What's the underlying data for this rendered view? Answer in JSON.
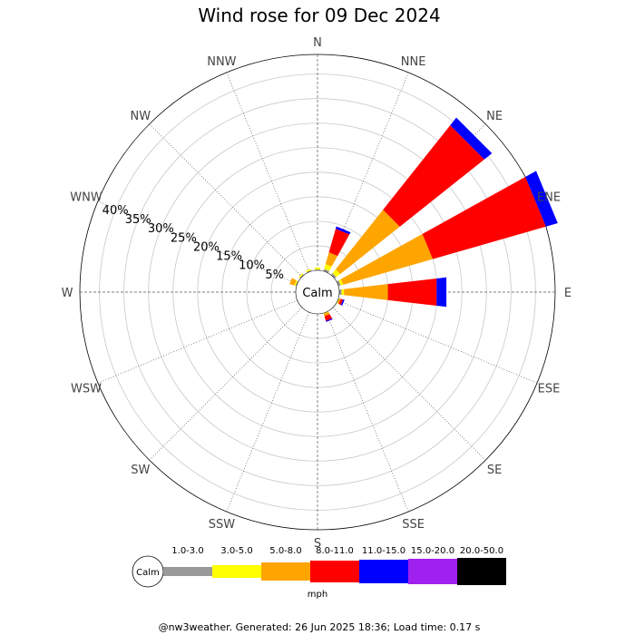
{
  "title": "Wind rose for 09 Dec 2024",
  "footer": "@nw3weather. Generated: 26 Jun 2025 18:36; Load time: 0.17 s",
  "calm_label": "Calm",
  "chart_data": {
    "type": "wind-rose",
    "title": "Wind rose for 09 Dec 2024",
    "directions": [
      "N",
      "NNE",
      "NE",
      "ENE",
      "E",
      "ESE",
      "SE",
      "SSE",
      "S",
      "SSW",
      "SW",
      "WSW",
      "W",
      "WNW",
      "NW",
      "NNW"
    ],
    "radial_ticks": [
      "5%",
      "10%",
      "15%",
      "20%",
      "25%",
      "30%",
      "35%",
      "40%"
    ],
    "radial_tick_values": [
      5,
      10,
      15,
      20,
      25,
      30,
      35,
      40
    ],
    "rmax": 44,
    "legend_unit": "mph",
    "speed_bins": [
      {
        "label": "Calm",
        "color": "#ffffff"
      },
      {
        "label": "1.0-3.0",
        "color": "#999999"
      },
      {
        "label": "3.0-5.0",
        "color": "#ffff00"
      },
      {
        "label": "5.0-8.0",
        "color": "#ffa500"
      },
      {
        "label": "8.0-11.0",
        "color": "#ff0000"
      },
      {
        "label": "11.0-15.0",
        "color": "#0000ff"
      },
      {
        "label": "15.0-20.0",
        "color": "#a020f0"
      },
      {
        "label": "20.0-50.0",
        "color": "#000000"
      }
    ],
    "series": [
      {
        "direction": "N",
        "values": [
          0.2,
          0.4,
          0,
          0,
          0,
          0,
          0
        ]
      },
      {
        "direction": "NNE",
        "values": [
          0.5,
          1.0,
          2.5,
          5.0,
          0.5,
          0,
          0
        ]
      },
      {
        "direction": "NE",
        "values": [
          0.5,
          1.0,
          15.5,
          22.0,
          2.0,
          0,
          0
        ]
      },
      {
        "direction": "ENE",
        "values": [
          0.5,
          0.5,
          19.0,
          24.0,
          2.5,
          0,
          0
        ]
      },
      {
        "direction": "E",
        "values": [
          0.5,
          0.5,
          9.0,
          10.0,
          2.0,
          0,
          0
        ]
      },
      {
        "direction": "ESE",
        "values": [
          0,
          0.2,
          0.3,
          0.5,
          0.3,
          0,
          0
        ]
      },
      {
        "direction": "SE",
        "values": [
          0,
          0,
          0,
          0,
          0,
          0,
          0
        ]
      },
      {
        "direction": "SSE",
        "values": [
          0,
          0.2,
          0.5,
          1.0,
          0.2,
          0,
          0
        ]
      },
      {
        "direction": "S",
        "values": [
          0,
          0,
          0,
          0,
          0,
          0,
          0
        ]
      },
      {
        "direction": "SSW",
        "values": [
          0,
          0,
          0,
          0,
          0,
          0,
          0
        ]
      },
      {
        "direction": "SW",
        "values": [
          0,
          0,
          0,
          0,
          0,
          0,
          0
        ]
      },
      {
        "direction": "WSW",
        "values": [
          0,
          0,
          0,
          0,
          0,
          0,
          0
        ]
      },
      {
        "direction": "W",
        "values": [
          0,
          0,
          0,
          0,
          0,
          0,
          0
        ]
      },
      {
        "direction": "WNW",
        "values": [
          0.2,
          0.3,
          1.0,
          0,
          0,
          0,
          0
        ]
      },
      {
        "direction": "NW",
        "values": [
          0.2,
          0.3,
          0,
          0,
          0,
          0,
          0
        ]
      },
      {
        "direction": "NNW",
        "values": [
          0.2,
          0.3,
          0,
          0,
          0,
          0,
          0
        ]
      }
    ]
  }
}
